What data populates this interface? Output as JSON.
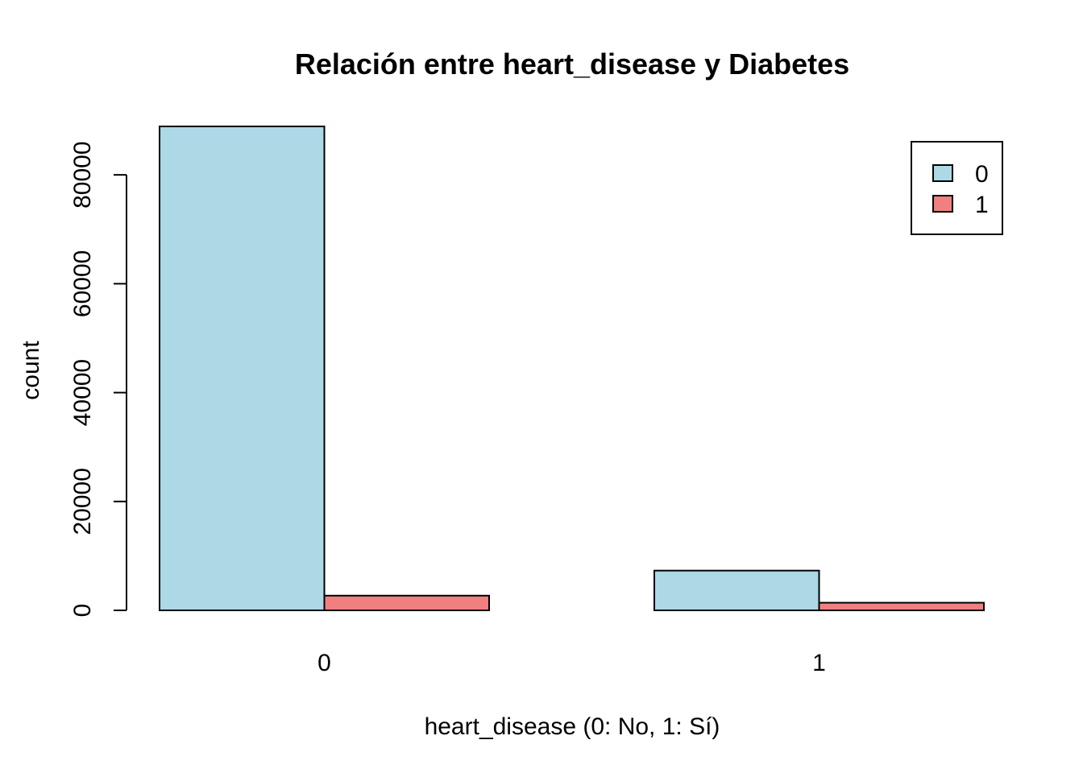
{
  "chart_data": {
    "type": "bar",
    "title": "Relación entre heart_disease y Diabetes",
    "xlabel": "heart_disease (0: No, 1: Sí)",
    "ylabel": "count",
    "categories": [
      "0",
      "1"
    ],
    "series": [
      {
        "name": "0",
        "values": [
          88900,
          7300
        ],
        "color": "#ADD8E6"
      },
      {
        "name": "1",
        "values": [
          2700,
          1400
        ],
        "color": "#F08080"
      }
    ],
    "ylim": [
      0,
      88900
    ],
    "yticks": [
      0,
      20000,
      40000,
      60000,
      80000
    ],
    "legend_position": "top-right",
    "grid": false
  }
}
